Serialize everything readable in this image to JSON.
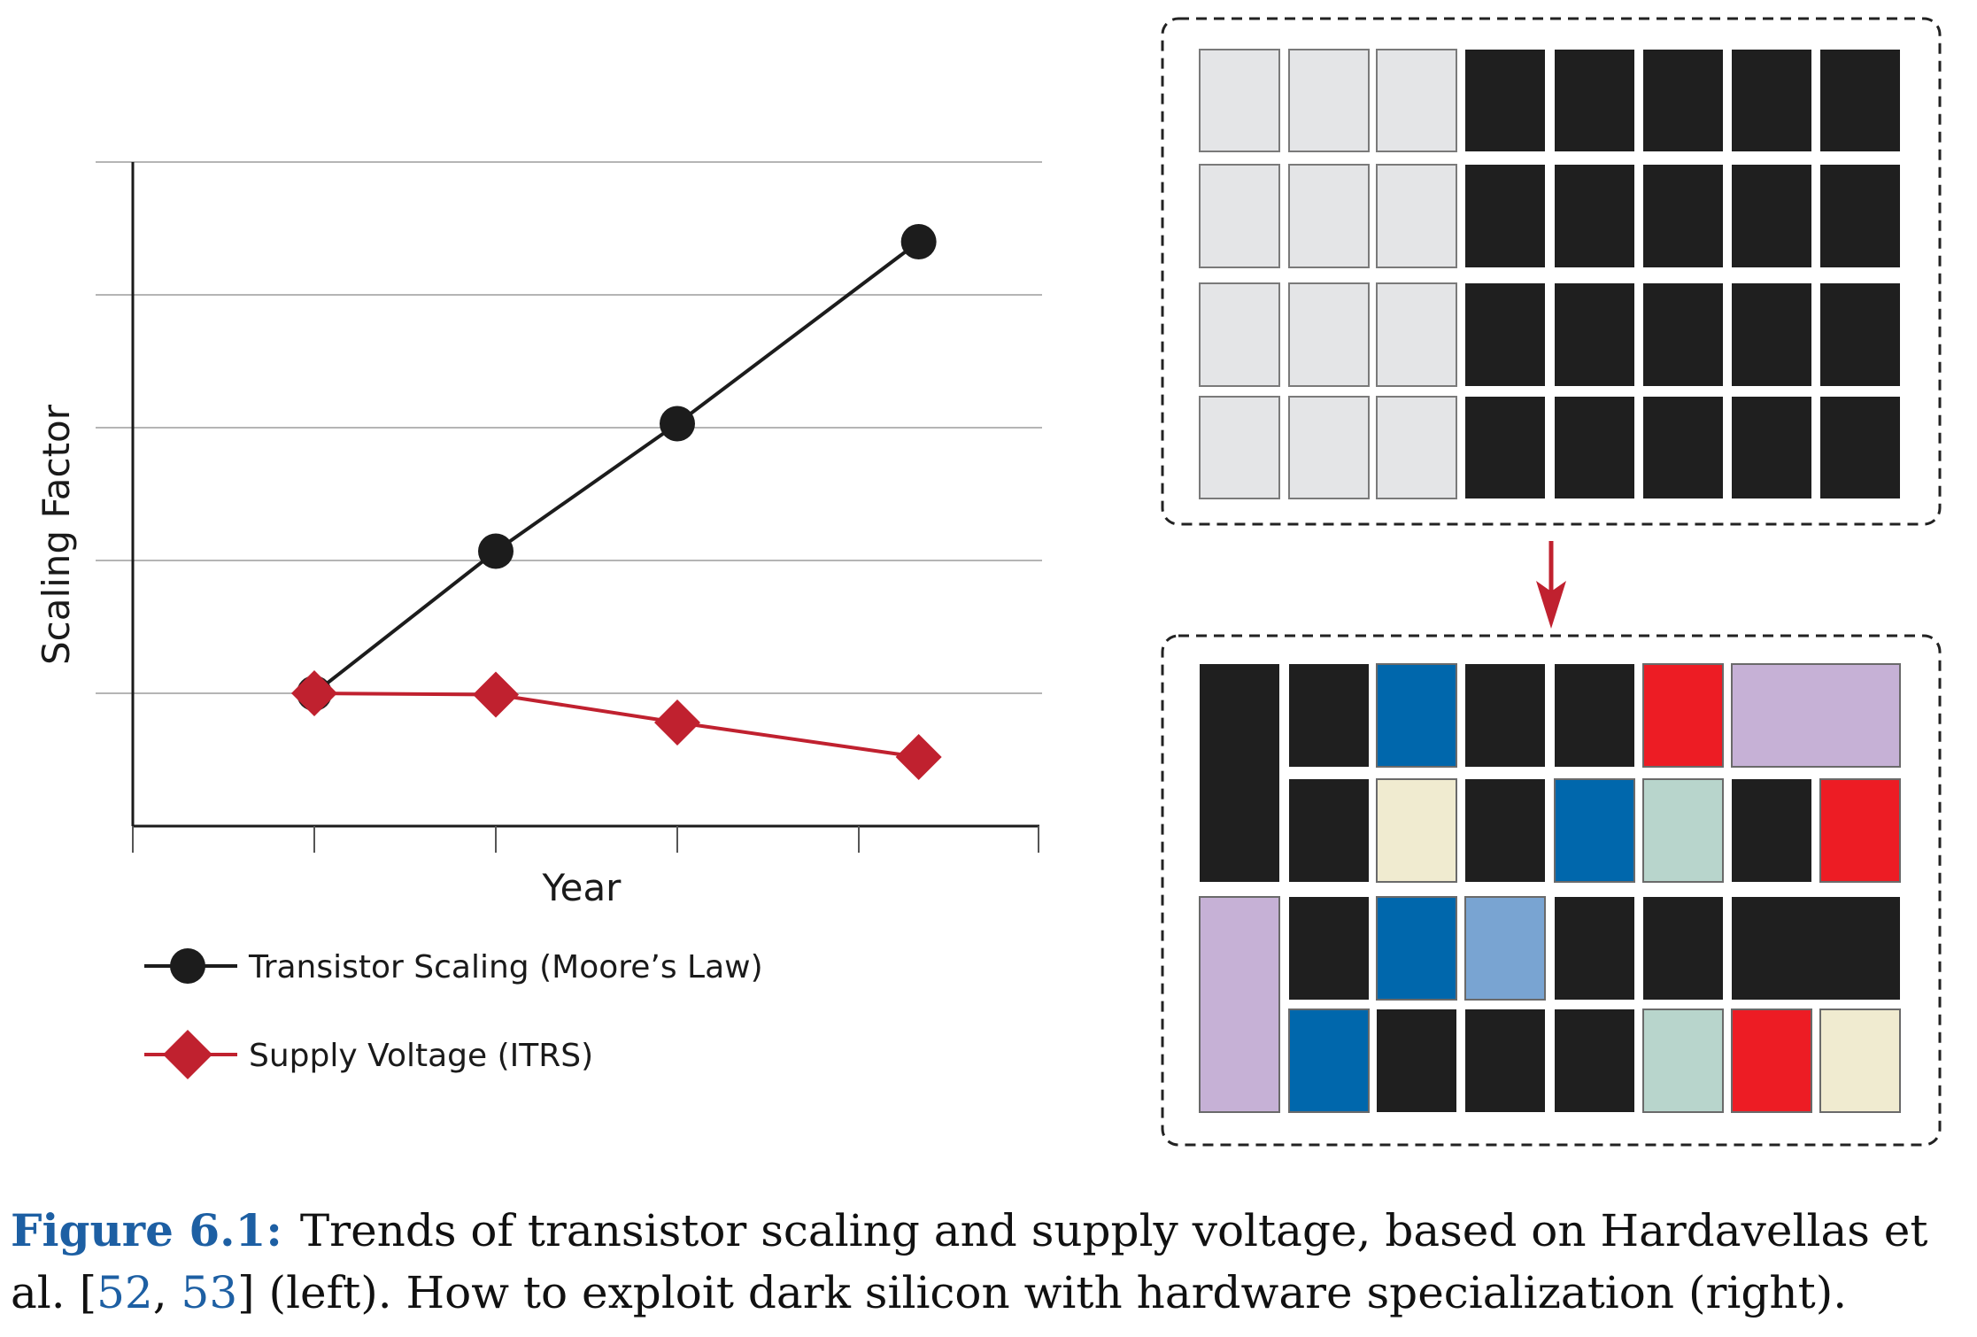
{
  "chart_data": {
    "type": "line",
    "x": [
      1,
      2,
      3,
      4
    ],
    "xlabel": "Year",
    "ylabel": "Scaling Factor",
    "xlim": [
      0,
      5
    ],
    "ylim": [
      0,
      5
    ],
    "grid": true,
    "legend_position": "bottom",
    "series": [
      {
        "name": "Transistor Scaling (Moore’s Law)",
        "marker": "circle",
        "color": "#1c1c1c",
        "x": [
          1,
          2,
          3,
          4.33
        ],
        "values": [
          1.0,
          2.07,
          3.03,
          4.4
        ]
      },
      {
        "name": "Supply Voltage (ITRS)",
        "marker": "diamond",
        "color": "#c0212f",
        "x": [
          1,
          2,
          3,
          4.33
        ],
        "values": [
          1.0,
          0.99,
          0.78,
          0.52
        ]
      }
    ]
  },
  "diagram": {
    "top_grid": {
      "rows": [
        [
          "light",
          "light",
          "light",
          "dark",
          "dark",
          "dark",
          "dark",
          "dark"
        ],
        [
          "light",
          "light",
          "light",
          "dark",
          "dark",
          "dark",
          "dark",
          "dark"
        ],
        [
          "light",
          "light",
          "light",
          "dark",
          "dark",
          "dark",
          "dark",
          "dark"
        ],
        [
          "light",
          "light",
          "light",
          "dark",
          "dark",
          "dark",
          "dark",
          "dark"
        ]
      ]
    },
    "bottom_grid": {
      "blocks": [
        {
          "row": 0,
          "col": 0,
          "rowspan": 2,
          "colspan": 1,
          "color": "dark"
        },
        {
          "row": 0,
          "col": 1,
          "rowspan": 1,
          "colspan": 1,
          "color": "dark"
        },
        {
          "row": 0,
          "col": 2,
          "rowspan": 1,
          "colspan": 1,
          "color": "blue"
        },
        {
          "row": 0,
          "col": 3,
          "rowspan": 1,
          "colspan": 1,
          "color": "dark"
        },
        {
          "row": 0,
          "col": 4,
          "rowspan": 1,
          "colspan": 1,
          "color": "dark"
        },
        {
          "row": 0,
          "col": 5,
          "rowspan": 1,
          "colspan": 1,
          "color": "red"
        },
        {
          "row": 0,
          "col": 6,
          "rowspan": 1,
          "colspan": 2,
          "color": "lavender"
        },
        {
          "row": 1,
          "col": 1,
          "rowspan": 1,
          "colspan": 1,
          "color": "dark"
        },
        {
          "row": 1,
          "col": 2,
          "rowspan": 1,
          "colspan": 1,
          "color": "cream"
        },
        {
          "row": 1,
          "col": 3,
          "rowspan": 1,
          "colspan": 1,
          "color": "dark"
        },
        {
          "row": 1,
          "col": 4,
          "rowspan": 1,
          "colspan": 1,
          "color": "blue"
        },
        {
          "row": 1,
          "col": 5,
          "rowspan": 1,
          "colspan": 1,
          "color": "mint"
        },
        {
          "row": 1,
          "col": 6,
          "rowspan": 1,
          "colspan": 1,
          "color": "dark"
        },
        {
          "row": 1,
          "col": 7,
          "rowspan": 1,
          "colspan": 1,
          "color": "red"
        },
        {
          "row": 2,
          "col": 0,
          "rowspan": 2,
          "colspan": 1,
          "color": "lavender"
        },
        {
          "row": 2,
          "col": 1,
          "rowspan": 1,
          "colspan": 1,
          "color": "dark"
        },
        {
          "row": 2,
          "col": 2,
          "rowspan": 1,
          "colspan": 1,
          "color": "blue"
        },
        {
          "row": 2,
          "col": 3,
          "rowspan": 1,
          "colspan": 1,
          "color": "lightblue"
        },
        {
          "row": 2,
          "col": 4,
          "rowspan": 1,
          "colspan": 1,
          "color": "dark"
        },
        {
          "row": 2,
          "col": 5,
          "rowspan": 1,
          "colspan": 1,
          "color": "dark"
        },
        {
          "row": 2,
          "col": 6,
          "rowspan": 1,
          "colspan": 2,
          "color": "dark"
        },
        {
          "row": 3,
          "col": 1,
          "rowspan": 1,
          "colspan": 1,
          "color": "blue"
        },
        {
          "row": 3,
          "col": 2,
          "rowspan": 1,
          "colspan": 1,
          "color": "dark"
        },
        {
          "row": 3,
          "col": 3,
          "rowspan": 1,
          "colspan": 1,
          "color": "dark"
        },
        {
          "row": 3,
          "col": 4,
          "rowspan": 1,
          "colspan": 1,
          "color": "dark"
        },
        {
          "row": 3,
          "col": 5,
          "rowspan": 1,
          "colspan": 1,
          "color": "mint"
        },
        {
          "row": 3,
          "col": 6,
          "rowspan": 1,
          "colspan": 1,
          "color": "red"
        },
        {
          "row": 3,
          "col": 7,
          "rowspan": 1,
          "colspan": 1,
          "color": "cream"
        }
      ]
    },
    "palette": {
      "light": "#e4e5e7",
      "dark": "#1f1f1f",
      "blue": "#0067ac",
      "lightblue": "#79a4d2",
      "red": "#ed1c24",
      "lavender": "#c6b1d6",
      "cream": "#f0ebd0",
      "mint": "#b8d5cc",
      "arrow": "#c0212f"
    }
  },
  "caption": {
    "label": "Figure 6.1:",
    "text_before": "Trends of transistor scaling and supply voltage, based on Hardavellas et al. [",
    "ref1": "52",
    "sep": ", ",
    "ref2": "53",
    "text_after": "] (left). How to exploit dark silicon with hardware specialization (right)."
  }
}
